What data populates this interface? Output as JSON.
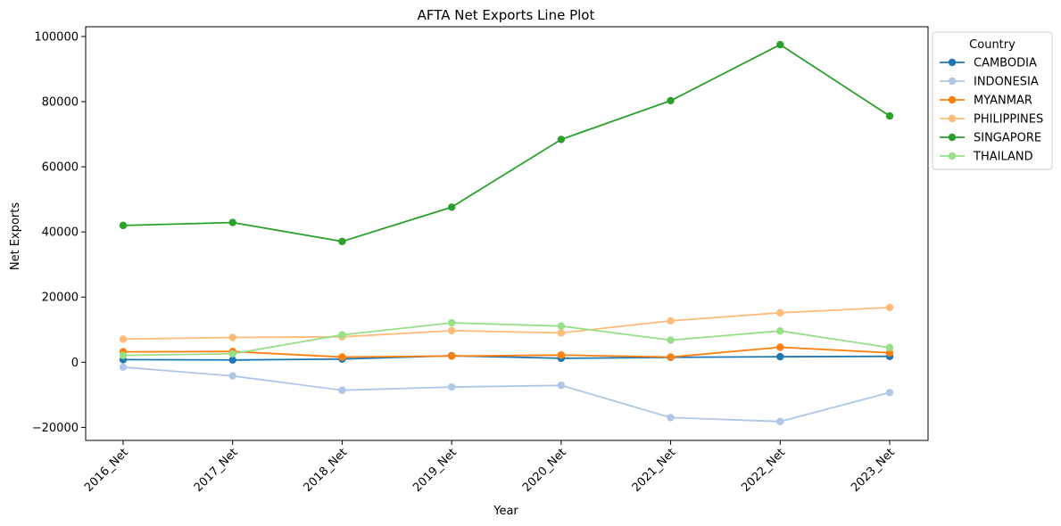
{
  "chart_data": {
    "type": "line",
    "title": "AFTA Net Exports Line Plot",
    "xlabel": "Year",
    "ylabel": "Net Exports",
    "categories": [
      "2016_Net",
      "2017_Net",
      "2018_Net",
      "2019_Net",
      "2020_Net",
      "2021_Net",
      "2022_Net",
      "2023_Net"
    ],
    "yticks": [
      -20000,
      0,
      20000,
      40000,
      60000,
      80000,
      100000
    ],
    "ytick_labels": [
      "−20000",
      "0",
      "20000",
      "40000",
      "60000",
      "80000",
      "100000"
    ],
    "ylim": [
      -24000,
      103000
    ],
    "grid": false,
    "legend": {
      "title": "Country",
      "placement": "outside-upper-right"
    },
    "series": [
      {
        "name": "CAMBODIA",
        "color": "#1f77b4",
        "values": [
          800,
          700,
          1000,
          2000,
          1200,
          1500,
          1700,
          1800
        ]
      },
      {
        "name": "INDONESIA",
        "color": "#aec7e8",
        "values": [
          -1500,
          -4200,
          -8600,
          -7600,
          -7100,
          -17000,
          -18200,
          -9300
        ]
      },
      {
        "name": "MYANMAR",
        "color": "#ff7f0e",
        "values": [
          3200,
          3300,
          1600,
          1900,
          2200,
          1600,
          4600,
          2900
        ]
      },
      {
        "name": "PHILIPPINES",
        "color": "#ffbb78",
        "values": [
          7100,
          7600,
          7800,
          9700,
          9000,
          12700,
          15200,
          16800
        ]
      },
      {
        "name": "SINGAPORE",
        "color": "#2ca02c",
        "values": [
          42000,
          42900,
          37100,
          47600,
          68400,
          80300,
          97500,
          75600
        ]
      },
      {
        "name": "THAILAND",
        "color": "#98df8a",
        "values": [
          2100,
          2600,
          8400,
          12100,
          11100,
          6800,
          9600,
          4500
        ]
      }
    ]
  }
}
